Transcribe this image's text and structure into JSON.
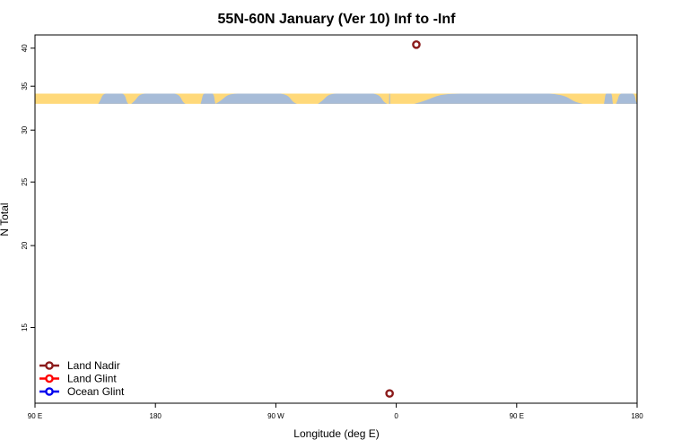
{
  "chart_data": {
    "type": "scatter",
    "title": "55N-60N January (Ver 10)   Inf to -Inf",
    "xlabel": "Longitude (deg E)",
    "ylabel": "N Total",
    "x_ticks": [
      {
        "lon": 90,
        "label": "90 E"
      },
      {
        "lon": 180,
        "label": "180"
      },
      {
        "lon": 270,
        "label": "90 W"
      },
      {
        "lon": 360,
        "label": "0"
      },
      {
        "lon": 450,
        "label": "90 E"
      },
      {
        "lon": 540,
        "label": "180"
      }
    ],
    "xlim": [
      90,
      540
    ],
    "y_ticks": [
      15,
      20,
      25,
      30,
      35,
      40
    ],
    "ylim": [
      11.5,
      41.9
    ],
    "y_scale": "log",
    "grid": false,
    "legend_position": "bottom-left",
    "series": [
      {
        "name": "Land Nadir",
        "color": "#8b1a1a",
        "points": [
          {
            "x": 375,
            "y": 40.5
          },
          {
            "x": 355,
            "y": 11.9
          }
        ]
      },
      {
        "name": "Land Glint",
        "color": "#ff0000",
        "points": []
      },
      {
        "name": "Ocean Glint",
        "color": "#0000ee",
        "points": []
      }
    ],
    "map_strip": {
      "y_range": [
        32.9,
        34.1
      ],
      "land_color": "#ffd97a",
      "ocean_color": "#a7bcd8"
    }
  }
}
